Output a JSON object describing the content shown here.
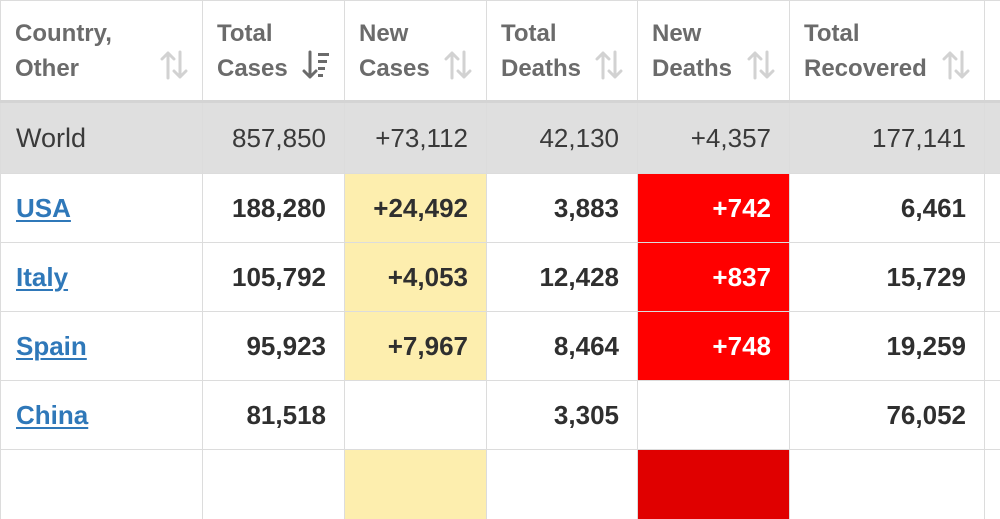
{
  "table": {
    "headers": [
      {
        "line1": "Country,",
        "line2": "Other",
        "sort": "inactive"
      },
      {
        "line1": "Total",
        "line2": "Cases",
        "sort": "active-desc"
      },
      {
        "line1": "New",
        "line2": "Cases",
        "sort": "inactive"
      },
      {
        "line1": "Total",
        "line2": "Deaths",
        "sort": "inactive"
      },
      {
        "line1": "New",
        "line2": "Deaths",
        "sort": "inactive"
      },
      {
        "line1": "Total",
        "line2": "Recovered",
        "sort": "inactive"
      }
    ],
    "world": {
      "country": "World",
      "total_cases": "857,850",
      "new_cases": "+73,112",
      "total_deaths": "42,130",
      "new_deaths": "+4,357",
      "total_recovered": "177,141"
    },
    "rows": [
      {
        "country": "USA",
        "total_cases": "188,280",
        "new_cases": "+24,492",
        "total_deaths": "3,883",
        "new_deaths": "+742",
        "total_recovered": "6,461"
      },
      {
        "country": "Italy",
        "total_cases": "105,792",
        "new_cases": "+4,053",
        "total_deaths": "12,428",
        "new_deaths": "+837",
        "total_recovered": "15,729"
      },
      {
        "country": "Spain",
        "total_cases": "95,923",
        "new_cases": "+7,967",
        "total_deaths": "8,464",
        "new_deaths": "+748",
        "total_recovered": "19,259"
      },
      {
        "country": "China",
        "total_cases": "81,518",
        "new_cases": "",
        "total_deaths": "3,305",
        "new_deaths": "",
        "total_recovered": "76,052"
      }
    ]
  },
  "colors": {
    "header_text": "#6b6b6b",
    "world_row_bg": "#dfdfdf",
    "new_cases_highlight": "#fdeeae",
    "new_deaths_highlight": "#ff0000",
    "link": "#2f78b9"
  },
  "icons": {
    "sort_inactive": "sort-arrows-icon",
    "sort_active": "sort-descending-icon"
  }
}
